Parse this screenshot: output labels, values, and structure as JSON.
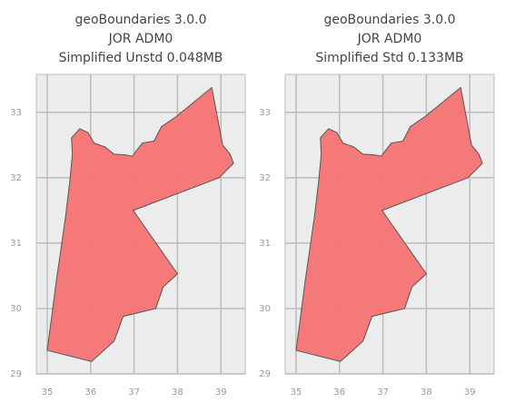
{
  "chart_data": [
    {
      "type": "map",
      "title": [
        "geoBoundaries 3.0.0",
        "JOR ADM0",
        "Simplified Unstd 0.048MB"
      ],
      "color": "#f57373",
      "x": [
        35.0,
        36.02,
        36.54,
        36.75,
        37.5,
        37.67,
        38.0,
        36.98,
        38.96,
        39.29,
        39.21,
        39.04,
        38.79,
        37.98,
        37.63,
        37.46,
        37.19,
        36.96,
        36.79,
        36.54,
        36.33,
        36.08,
        35.94,
        35.75,
        35.56,
        35.58,
        35.52,
        35.42,
        35.33,
        35.21,
        35.1,
        35.0
      ],
      "y": [
        29.36,
        29.19,
        29.5,
        29.88,
        30.0,
        30.33,
        30.53,
        31.5,
        32.0,
        32.22,
        32.36,
        32.5,
        33.38,
        32.94,
        32.78,
        32.56,
        32.53,
        32.33,
        32.35,
        32.36,
        32.47,
        32.53,
        32.69,
        32.75,
        32.61,
        32.36,
        31.94,
        31.39,
        30.97,
        30.42,
        29.86,
        29.36
      ],
      "xlim": [
        34.75,
        39.56
      ],
      "ylim": [
        29,
        33.58
      ],
      "xticks": [
        35,
        36,
        37,
        38,
        39
      ],
      "yticks": [
        29,
        30,
        31,
        32,
        33
      ],
      "grid": true
    },
    {
      "type": "map",
      "title": [
        "geoBoundaries 3.0.0",
        "JOR ADM0",
        "Simplified Std 0.133MB"
      ],
      "color": "#f57373",
      "x": [
        35.0,
        36.02,
        36.54,
        36.75,
        37.5,
        37.67,
        38.0,
        36.98,
        38.96,
        39.29,
        39.21,
        39.04,
        38.79,
        37.98,
        37.63,
        37.46,
        37.19,
        36.96,
        36.79,
        36.54,
        36.33,
        36.08,
        35.94,
        35.75,
        35.56,
        35.58,
        35.52,
        35.42,
        35.33,
        35.21,
        35.1,
        35.0
      ],
      "y": [
        29.36,
        29.19,
        29.5,
        29.88,
        30.0,
        30.33,
        30.53,
        31.5,
        32.0,
        32.22,
        32.36,
        32.5,
        33.38,
        32.94,
        32.78,
        32.56,
        32.53,
        32.33,
        32.35,
        32.36,
        32.47,
        32.53,
        32.69,
        32.75,
        32.61,
        32.36,
        31.94,
        31.39,
        30.97,
        30.42,
        29.86,
        29.36
      ],
      "xlim": [
        34.75,
        39.56
      ],
      "ylim": [
        29,
        33.58
      ],
      "xticks": [
        35,
        36,
        37,
        38,
        39
      ],
      "yticks": [
        29,
        30,
        31,
        32,
        33
      ],
      "grid": true
    }
  ]
}
